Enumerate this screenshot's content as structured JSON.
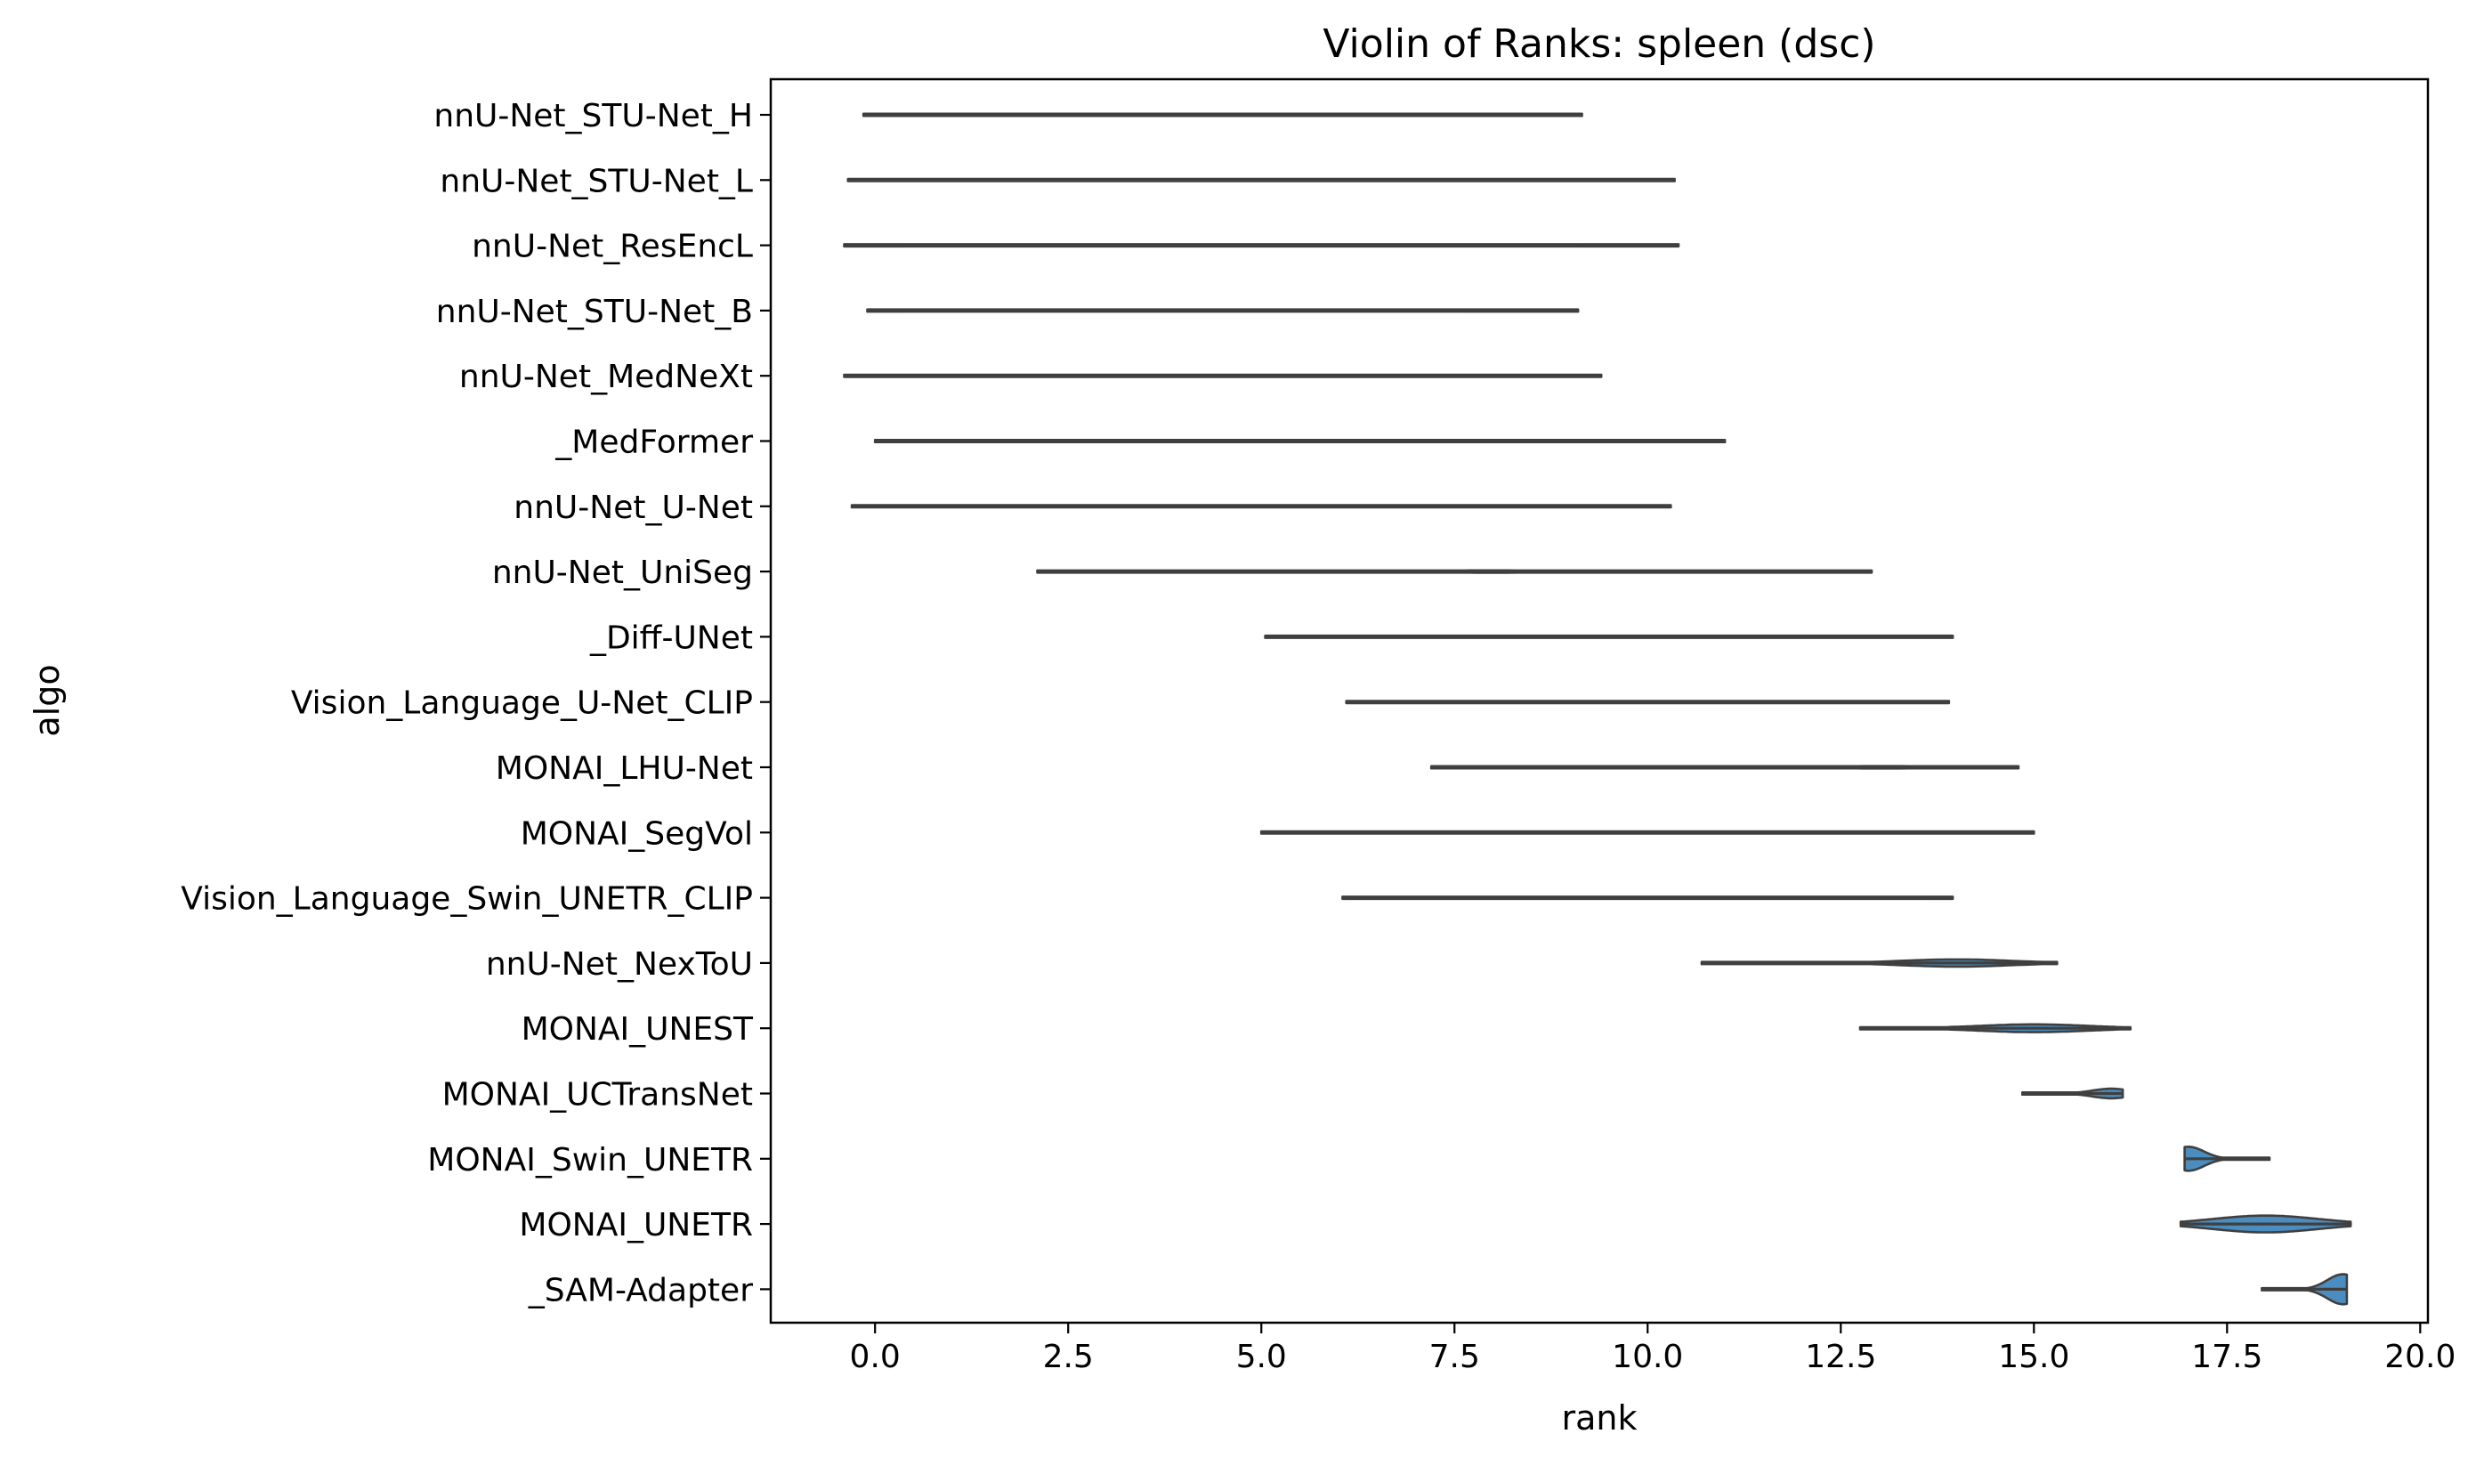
{
  "chart_data": {
    "type": "violin",
    "title": "Violin of Ranks: spleen (dsc)",
    "xlabel": "rank",
    "ylabel": "algo",
    "xlim": [
      -1.35,
      20.1
    ],
    "x_ticks": [
      0.0,
      2.5,
      5.0,
      7.5,
      10.0,
      12.5,
      15.0,
      17.5,
      20.0
    ],
    "x_tick_labels": [
      "0.0",
      "2.5",
      "5.0",
      "7.5",
      "10.0",
      "12.5",
      "15.0",
      "17.5",
      "20.0"
    ],
    "grid": false,
    "legend": "none",
    "colors": {
      "violin_fill": "#4c8dbf",
      "violin_edge": "#3f3f3f",
      "axes": "#000000"
    },
    "categories": [
      "nnU-Net_STU-Net_H",
      "nnU-Net_STU-Net_L",
      "nnU-Net_ResEncL",
      "nnU-Net_STU-Net_B",
      "nnU-Net_MedNeXt",
      "_MedFormer",
      "nnU-Net_U-Net",
      "nnU-Net_UniSeg",
      "_Diff-UNet",
      "Vision_Language_U-Net_CLIP",
      "MONAI_LHU-Net",
      "MONAI_SegVol",
      "Vision_Language_Swin_UNETR_CLIP",
      "nnU-Net_NexToU",
      "MONAI_UNEST",
      "MONAI_UCTransNet",
      "MONAI_Swin_UNETR",
      "MONAI_UNETR",
      "_SAM-Adapter"
    ],
    "violins": [
      {
        "min": -0.15,
        "max": 9.15,
        "mode": 1.5,
        "peak": 0.03
      },
      {
        "min": -0.35,
        "max": 10.35,
        "mode": 4.0,
        "peak": 0.025
      },
      {
        "min": -0.4,
        "max": 10.4,
        "mode": 5.0,
        "peak": 0.025
      },
      {
        "min": -0.1,
        "max": 9.1,
        "mode": 1.0,
        "peak": 0.025
      },
      {
        "min": -0.4,
        "max": 9.4,
        "mode": 3.0,
        "peak": 0.025
      },
      {
        "min": 0.0,
        "max": 11.0,
        "mode": 7.5,
        "peak": 0.03
      },
      {
        "min": -0.3,
        "max": 10.3,
        "mode": 5.0,
        "peak": 0.03
      },
      {
        "min": 2.1,
        "max": 12.9,
        "mode": 8.0,
        "peak": 0.04
      },
      {
        "min": 5.05,
        "max": 13.95,
        "mode": 9.0,
        "peak": 0.035
      },
      {
        "min": 6.1,
        "max": 13.9,
        "mode": 10.5,
        "peak": 0.03
      },
      {
        "min": 7.2,
        "max": 14.8,
        "mode": 13.0,
        "peak": 0.04
      },
      {
        "min": 5.0,
        "max": 15.0,
        "mode": 10.0,
        "peak": 0.025
      },
      {
        "min": 6.05,
        "max": 13.95,
        "mode": 10.0,
        "peak": 0.025
      },
      {
        "min": 10.7,
        "max": 15.3,
        "mode": 14.0,
        "peak": 0.12
      },
      {
        "min": 12.75,
        "max": 16.25,
        "mode": 15.0,
        "peak": 0.13
      },
      {
        "min": 14.85,
        "max": 16.15,
        "mode": 16.0,
        "peak": 0.16
      },
      {
        "min": 16.95,
        "max": 18.05,
        "mode": 17.0,
        "peak": 0.4
      },
      {
        "min": 16.9,
        "max": 19.1,
        "mode": 18.0,
        "peak": 0.28
      },
      {
        "min": 17.95,
        "max": 19.05,
        "mode": 19.0,
        "peak": 0.5
      }
    ]
  }
}
